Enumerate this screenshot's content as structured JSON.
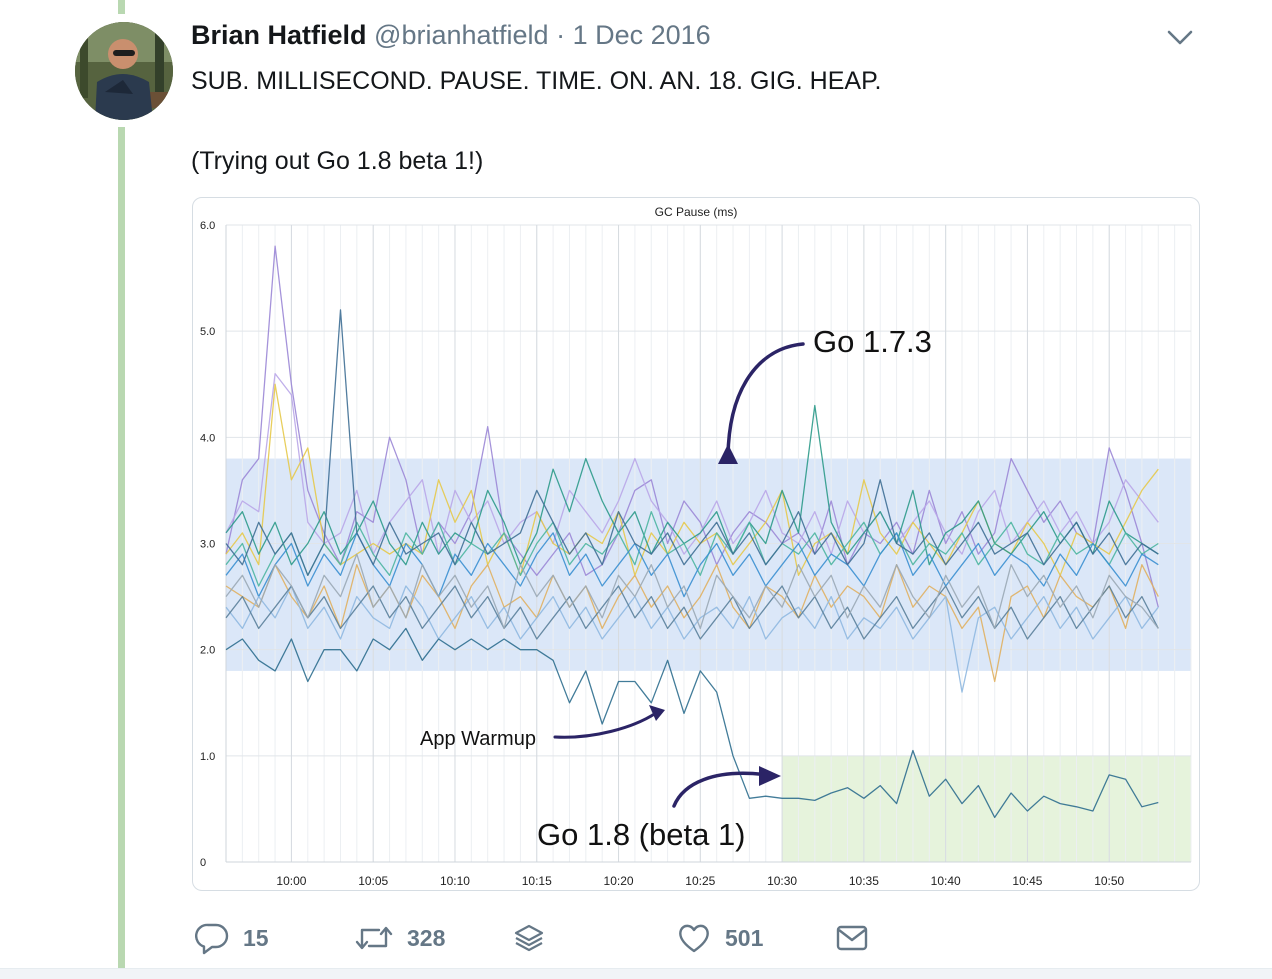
{
  "tweet": {
    "author_name": "Brian Hatfield",
    "author_handle": "@brianhatfield",
    "separator": "·",
    "date": "1 Dec 2016",
    "text_line1": "SUB. MILLISECOND. PAUSE. TIME. ON. AN. 18. GIG. HEAP.",
    "text_line2": "(Trying out Go 1.8 beta 1!)"
  },
  "actions": {
    "reply_count": "15",
    "retweet_count": "328",
    "like_count": "501",
    "icons": [
      "reply-icon",
      "retweet-icon",
      "stack-icon",
      "heart-icon",
      "envelope-icon"
    ]
  },
  "chart_data": {
    "type": "line",
    "title": "GC Pause (ms)",
    "xlabel": "",
    "ylabel": "",
    "ylim": [
      0,
      6
    ],
    "xlim": [
      "09:56",
      "10:55"
    ],
    "y_ticks": [
      "0",
      "1.0",
      "2.0",
      "3.0",
      "4.0",
      "5.0",
      "6.0"
    ],
    "x_ticks": [
      "10:00",
      "10:05",
      "10:10",
      "10:15",
      "10:20",
      "10:25",
      "10:30",
      "10:35",
      "10:40",
      "10:45",
      "10:50"
    ],
    "grid": true,
    "bands": [
      {
        "from_time": "09:56",
        "to_time": "10:55",
        "y_min": 1.8,
        "y_max": 3.8,
        "color": "#dbe7f8"
      },
      {
        "from_time": "10:30",
        "to_time": "10:55",
        "y_min": 0,
        "y_max": 1.0,
        "color": "#e6f3dc"
      }
    ],
    "annotations": [
      {
        "text": "Go 1.7.3"
      },
      {
        "text": "App Warmup"
      },
      {
        "text": "Go 1.8 (beta 1)"
      }
    ],
    "series": [
      {
        "color": "#9b87d6",
        "values": [
          2.9,
          3.6,
          3.8,
          5.8,
          4.5,
          3.5,
          3.1,
          2.8,
          3.3,
          3.2,
          4.0,
          3.6,
          2.9,
          3.2,
          3.0,
          3.3,
          4.1,
          3.1,
          2.9,
          2.7,
          2.9,
          3.1,
          2.7,
          2.8,
          3.1,
          3.5,
          3.6,
          3.0,
          3.4,
          3.2,
          2.8,
          3.1,
          3.3,
          3.2,
          3.0,
          3.1,
          2.9,
          3.4,
          2.8,
          3.1,
          3.0,
          3.2,
          2.9,
          3.5,
          3.0,
          3.3,
          2.9,
          3.1,
          3.8,
          3.5,
          3.2,
          3.4,
          3.1,
          3.0,
          3.9,
          3.5,
          3.0,
          2.4
        ]
      },
      {
        "color": "#b9a6e8",
        "values": [
          3.1,
          3.4,
          3.3,
          4.6,
          4.4,
          3.2,
          3.0,
          3.1,
          3.5,
          2.9,
          3.2,
          3.4,
          3.6,
          2.9,
          3.5,
          3.2,
          3.4,
          3.0,
          3.2,
          3.3,
          3.0,
          3.5,
          3.3,
          3.1,
          3.4,
          3.8,
          3.4,
          3.2,
          2.9,
          3.1,
          3.4,
          3.0,
          3.2,
          3.5,
          3.1,
          3.0,
          3.3,
          2.9,
          3.4,
          3.1,
          3.3,
          3.0,
          3.2,
          3.4,
          3.1,
          2.9,
          3.3,
          3.5,
          3.0,
          3.2,
          3.4,
          3.1,
          3.3,
          3.0,
          3.2,
          3.6,
          3.4,
          3.2
        ]
      },
      {
        "color": "#e5c94a",
        "values": [
          2.9,
          3.1,
          2.8,
          4.5,
          3.6,
          3.9,
          3.0,
          2.8,
          2.9,
          3.0,
          2.9,
          3.0,
          2.9,
          3.6,
          3.2,
          3.5,
          2.8,
          3.1,
          2.7,
          3.3,
          3.0,
          2.9,
          3.1,
          3.0,
          3.3,
          2.7,
          3.1,
          2.9,
          3.2,
          3.0,
          3.1,
          2.8,
          3.0,
          3.2,
          3.5,
          2.7,
          3.0,
          3.1,
          2.9,
          3.6,
          3.1,
          2.9,
          3.2,
          3.0,
          2.8,
          3.1,
          3.4,
          3.0,
          2.9,
          3.2,
          3.0,
          2.7,
          3.1,
          3.0,
          2.9,
          3.2,
          3.5,
          3.7
        ]
      },
      {
        "color": "#e0b060",
        "values": [
          2.6,
          2.5,
          2.4,
          2.8,
          2.5,
          2.3,
          2.6,
          2.2,
          2.8,
          2.4,
          2.6,
          2.3,
          2.7,
          2.5,
          2.2,
          2.6,
          2.8,
          2.4,
          2.5,
          2.3,
          2.7,
          2.4,
          2.6,
          2.2,
          2.5,
          2.7,
          2.4,
          2.6,
          2.3,
          2.5,
          2.8,
          2.4,
          2.2,
          2.6,
          2.5,
          2.3,
          2.7,
          2.4,
          2.6,
          2.5,
          2.3,
          2.8,
          2.4,
          2.6,
          2.5,
          2.2,
          2.4,
          1.7,
          2.5,
          2.6,
          2.3,
          2.7,
          2.5,
          2.4,
          2.6,
          2.2,
          2.8,
          2.5
        ]
      },
      {
        "color": "#2c9a8a",
        "values": [
          3.1,
          3.3,
          2.9,
          3.2,
          2.8,
          3.0,
          3.3,
          2.9,
          3.1,
          3.4,
          3.0,
          2.8,
          3.2,
          2.9,
          3.1,
          3.0,
          3.5,
          3.2,
          2.8,
          3.1,
          3.7,
          3.3,
          3.8,
          3.4,
          3.1,
          3.3,
          2.9,
          3.2,
          3.0,
          3.1,
          3.3,
          2.9,
          3.2,
          3.0,
          3.5,
          3.1,
          4.3,
          3.2,
          2.9,
          3.1,
          3.3,
          3.0,
          3.5,
          2.8,
          3.1,
          3.2,
          3.4,
          3.0,
          2.9,
          3.1,
          3.3,
          3.0,
          3.2,
          2.9,
          3.4,
          3.1,
          3.0,
          2.9
        ]
      },
      {
        "color": "#4bb5a0",
        "values": [
          2.8,
          3.0,
          2.6,
          2.9,
          3.1,
          2.7,
          3.0,
          2.8,
          3.2,
          2.9,
          2.7,
          3.1,
          2.9,
          3.2,
          2.8,
          3.0,
          2.9,
          3.1,
          2.7,
          3.0,
          3.2,
          2.8,
          3.0,
          2.9,
          3.1,
          2.8,
          3.3,
          2.9,
          3.0,
          2.7,
          3.1,
          2.9,
          3.2,
          2.8,
          3.0,
          2.9,
          3.1,
          2.8,
          3.0,
          3.2,
          2.9,
          3.1,
          2.8,
          3.0,
          2.9,
          3.1,
          2.8,
          3.0,
          3.2,
          2.9,
          2.8,
          3.1,
          2.9,
          3.0,
          2.8,
          3.1,
          2.9,
          3.0
        ]
      },
      {
        "color": "#3a8fd0",
        "values": [
          2.7,
          2.9,
          2.5,
          2.8,
          3.0,
          2.6,
          2.9,
          2.7,
          3.1,
          2.8,
          2.6,
          3.0,
          2.8,
          2.5,
          2.9,
          2.7,
          3.0,
          2.8,
          2.6,
          2.9,
          3.1,
          2.7,
          2.9,
          2.6,
          2.8,
          3.0,
          2.7,
          2.9,
          2.5,
          2.8,
          3.0,
          2.7,
          2.9,
          2.6,
          2.8,
          3.0,
          2.7,
          2.9,
          2.8,
          2.6,
          2.9,
          3.1,
          2.7,
          2.9,
          2.6,
          2.8,
          3.0,
          2.7,
          2.9,
          2.8,
          2.6,
          2.9,
          2.7,
          3.0,
          2.8,
          2.6,
          2.9,
          2.8
        ]
      },
      {
        "color": "#8fb8e0",
        "values": [
          2.4,
          2.2,
          2.5,
          2.3,
          2.6,
          2.2,
          2.4,
          2.1,
          2.5,
          2.3,
          2.2,
          2.6,
          2.4,
          2.1,
          2.3,
          2.5,
          2.2,
          2.4,
          2.1,
          2.3,
          2.5,
          2.2,
          2.4,
          2.1,
          2.3,
          2.5,
          2.2,
          2.4,
          2.1,
          2.3,
          2.4,
          2.2,
          2.5,
          2.1,
          2.3,
          2.4,
          2.2,
          2.5,
          2.1,
          2.3,
          2.2,
          2.4,
          2.1,
          2.3,
          2.5,
          1.6,
          2.3,
          2.4,
          2.1,
          2.3,
          2.5,
          2.2,
          2.4,
          2.1,
          2.3,
          2.5,
          2.2,
          2.4
        ]
      },
      {
        "color": "#3f6f95",
        "values": [
          3.0,
          2.8,
          3.2,
          2.9,
          3.1,
          2.7,
          3.0,
          5.2,
          3.1,
          2.8,
          3.2,
          2.9,
          3.0,
          3.1,
          2.8,
          3.2,
          2.9,
          3.0,
          3.1,
          3.5,
          3.2,
          2.9,
          3.1,
          2.8,
          3.3,
          3.0,
          2.9,
          3.1,
          2.8,
          3.0,
          3.2,
          2.9,
          3.1,
          2.8,
          3.0,
          3.3,
          2.9,
          3.1,
          2.8,
          3.0,
          3.6,
          3.0,
          2.9,
          3.1,
          2.8,
          3.0,
          3.2,
          2.9,
          3.0,
          3.1,
          2.8,
          3.0,
          3.2,
          2.9,
          3.1,
          2.8,
          3.0,
          2.9
        ]
      },
      {
        "color": "#5a7f9a",
        "values": [
          2.3,
          2.5,
          2.2,
          2.4,
          2.6,
          2.3,
          2.5,
          2.2,
          2.4,
          2.6,
          2.3,
          2.5,
          2.2,
          2.4,
          2.6,
          2.3,
          2.5,
          2.2,
          2.4,
          2.1,
          2.3,
          2.5,
          2.2,
          2.4,
          2.6,
          2.3,
          2.5,
          2.2,
          2.4,
          2.1,
          2.3,
          2.5,
          2.2,
          2.4,
          2.6,
          2.3,
          2.5,
          2.2,
          2.4,
          2.1,
          2.3,
          2.5,
          2.2,
          2.4,
          2.6,
          2.3,
          2.5,
          2.2,
          2.4,
          2.1,
          2.3,
          2.5,
          2.2,
          2.4,
          2.6,
          2.3,
          2.5,
          2.2
        ]
      },
      {
        "color": "#9aa9b5",
        "values": [
          2.5,
          2.7,
          2.4,
          2.8,
          2.6,
          2.3,
          2.7,
          2.5,
          2.9,
          2.4,
          2.6,
          2.3,
          2.8,
          2.5,
          2.7,
          2.4,
          2.6,
          2.2,
          2.8,
          2.5,
          2.7,
          2.4,
          2.6,
          2.3,
          2.7,
          2.5,
          2.8,
          2.4,
          2.6,
          2.2,
          2.7,
          2.5,
          2.3,
          2.6,
          2.4,
          2.8,
          2.5,
          2.7,
          2.3,
          2.6,
          2.4,
          2.8,
          2.5,
          2.3,
          2.7,
          2.4,
          2.6,
          2.2,
          2.8,
          2.5,
          2.7,
          2.4,
          2.6,
          2.3,
          2.7,
          2.5,
          2.4,
          2.2
        ]
      },
      {
        "color": "#2e6e8e",
        "values": [
          2.0,
          2.1,
          1.9,
          1.8,
          2.1,
          1.7,
          2.0,
          2.0,
          1.8,
          2.1,
          2.0,
          2.2,
          1.9,
          2.1,
          2.0,
          2.1,
          2.0,
          2.1,
          2.0,
          2.0,
          1.9,
          1.5,
          1.8,
          1.3,
          1.7,
          1.7,
          1.5,
          1.9,
          1.4,
          1.8,
          1.6,
          1.0,
          0.6,
          0.62,
          0.6,
          0.6,
          0.58,
          0.65,
          0.7,
          0.6,
          0.72,
          0.55,
          1.05,
          0.62,
          0.78,
          0.55,
          0.72,
          0.42,
          0.65,
          0.48,
          0.62,
          0.55,
          0.52,
          0.48,
          0.82,
          0.78,
          0.52,
          0.56
        ]
      }
    ]
  }
}
